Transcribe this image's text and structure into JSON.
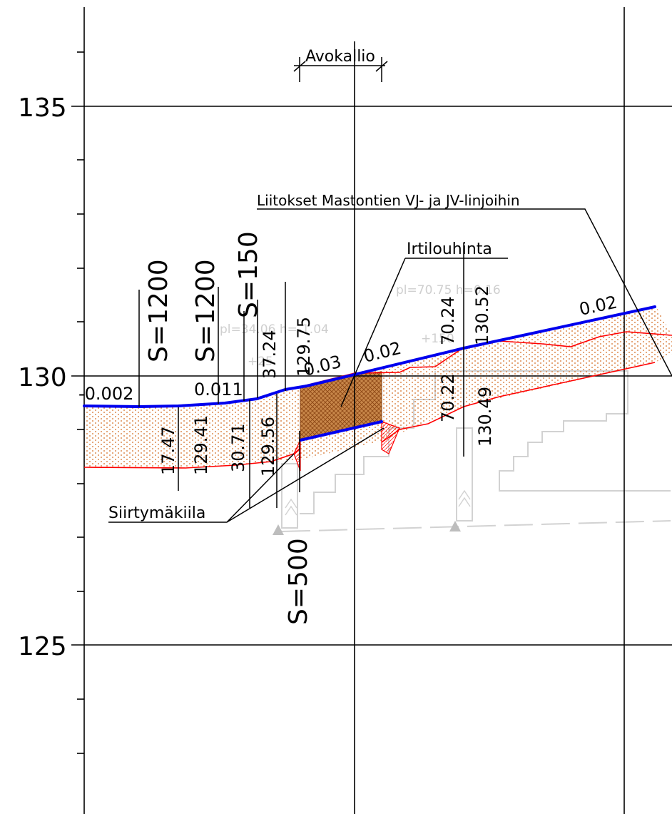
{
  "elevation_axis": {
    "labels": [
      "135",
      "130",
      "125"
    ]
  },
  "headers": {
    "avokallio": "Avokallio",
    "liitokset": "Liitokset Mastontien VJ- ja JV-linjoihin",
    "irtilouhinta": "Irtilouhinta",
    "siirtymakiila": "Siirtymäkiila"
  },
  "curves": {
    "s1": "S=1200",
    "s2": "S=1200",
    "s3": "S=150",
    "s4": "S=500"
  },
  "slopes": {
    "a": "-0.002",
    "b": "0.011",
    "c": "0.03",
    "d": "0.02",
    "e": "0.02"
  },
  "stations": {
    "v1": "17.47",
    "v2": "129.41",
    "v3": "30.71",
    "v4": "129.56",
    "v5": "37.24",
    "v6": "129.75",
    "v7": "70.24",
    "v8": "130.52",
    "v9": "70.22",
    "v10": "130.49"
  },
  "background_notes": {
    "n1": "pl=70.75 h=0.16",
    "n2": "pl=34.06 h=-1.04",
    "n3": "+150",
    "n4": "+25"
  },
  "colors": {
    "grade_line": "#0000ee",
    "ground_line": "#ff0000",
    "fill_dots": "#d2691e",
    "rock_cut": "#b5651d",
    "grid": "#000000",
    "background_drawing": "#d0d0d0"
  }
}
